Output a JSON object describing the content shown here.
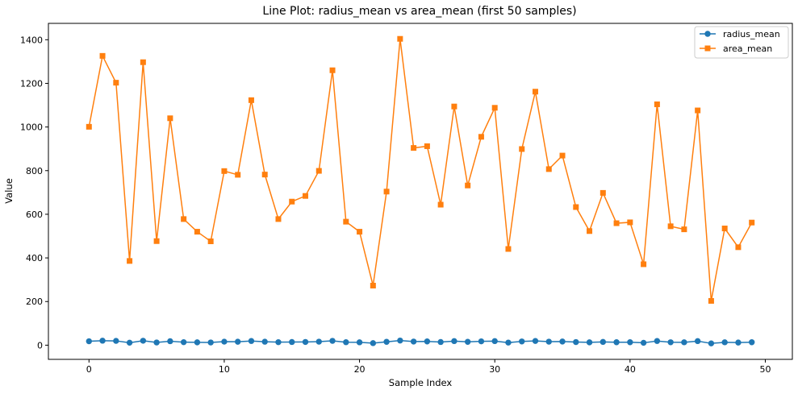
{
  "chart_data": {
    "type": "line",
    "title": "Line Plot: radius_mean vs area_mean (first 50 samples)",
    "xlabel": "Sample Index",
    "ylabel": "Value",
    "xlim": [
      -3,
      52
    ],
    "ylim": [
      -65,
      1475
    ],
    "xticks": [
      0,
      10,
      20,
      30,
      40,
      50
    ],
    "yticks": [
      0,
      200,
      400,
      600,
      800,
      1000,
      1200,
      1400
    ],
    "grid": false,
    "legend_position": "top-right",
    "x": [
      0,
      1,
      2,
      3,
      4,
      5,
      6,
      7,
      8,
      9,
      10,
      11,
      12,
      13,
      14,
      15,
      16,
      17,
      18,
      19,
      20,
      21,
      22,
      23,
      24,
      25,
      26,
      27,
      28,
      29,
      30,
      31,
      32,
      33,
      34,
      35,
      36,
      37,
      38,
      39,
      40,
      41,
      42,
      43,
      44,
      45,
      46,
      47,
      48,
      49
    ],
    "series": [
      {
        "name": "radius_mean",
        "color": "#1f77b4",
        "marker": "circle",
        "values": [
          17.99,
          20.57,
          19.69,
          11.42,
          20.29,
          12.45,
          18.25,
          13.71,
          13.0,
          12.46,
          16.02,
          15.78,
          19.17,
          15.85,
          13.73,
          14.54,
          14.68,
          16.13,
          19.81,
          13.54,
          13.08,
          9.5,
          15.34,
          21.16,
          16.65,
          17.14,
          14.58,
          18.61,
          15.3,
          17.57,
          18.63,
          11.84,
          17.02,
          19.27,
          16.13,
          16.74,
          14.25,
          13.03,
          14.99,
          13.48,
          13.44,
          10.95,
          19.07,
          13.28,
          13.17,
          18.65,
          8.2,
          13.17,
          12.05,
          13.49
        ]
      },
      {
        "name": "area_mean",
        "color": "#ff7f0e",
        "marker": "square",
        "values": [
          1001,
          1326,
          1203,
          386,
          1297,
          477,
          1040,
          578,
          520,
          476,
          798,
          781,
          1123,
          782,
          578,
          658,
          684,
          799,
          1260,
          566,
          520,
          273,
          704,
          1404,
          904,
          912,
          644,
          1094,
          732,
          955,
          1088,
          441,
          899,
          1162,
          807,
          869,
          633,
          523,
          698,
          559,
          563,
          371,
          1104,
          545,
          531,
          1076,
          203,
          535,
          449,
          562
        ]
      }
    ]
  }
}
